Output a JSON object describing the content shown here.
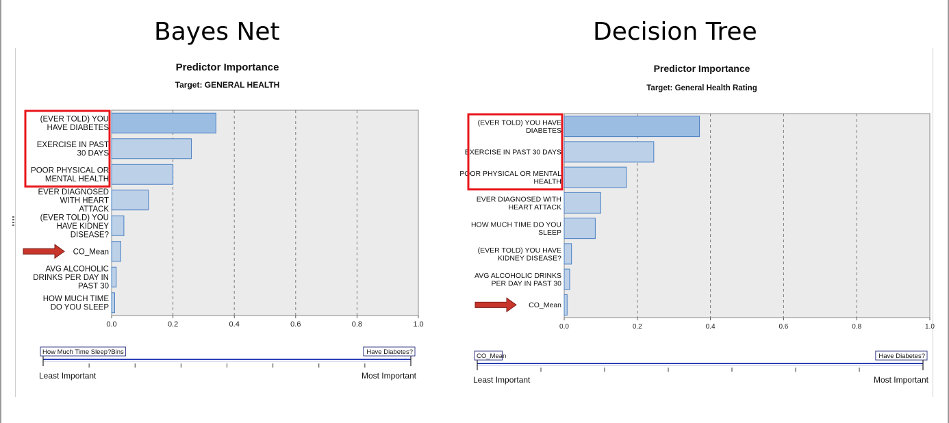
{
  "panels": {
    "left": {
      "title": "Bayes Net"
    },
    "right": {
      "title": "Decision Tree"
    }
  },
  "colors": {
    "plot_bg": "#ebebeb",
    "bar_fill_top": "#9cbde2",
    "bar_fill": "#bcd0e8",
    "bar_stroke": "#4a7fc1",
    "highlight_box": "#e8161b",
    "arrow": "#c8352b",
    "slider_line": "#2c3fb5"
  },
  "chart_data": [
    {
      "type": "bar",
      "orientation": "horizontal",
      "title": "Predictor Importance",
      "subtitle": "Target: GENERAL HEALTH",
      "categories": [
        [
          "(EVER TOLD) YOU",
          "HAVE DIABETES"
        ],
        [
          "EXERCISE IN PAST",
          "30 DAYS"
        ],
        [
          "POOR PHYSICAL OR",
          "MENTAL HEALTH"
        ],
        [
          "EVER DIAGNOSED",
          "WITH HEART",
          "ATTACK"
        ],
        [
          "(EVER TOLD) YOU",
          "HAVE KIDNEY",
          "DISEASE?"
        ],
        [
          "CO_Mean"
        ],
        [
          "AVG ALCOHOLIC",
          "DRINKS PER DAY IN",
          "PAST 30"
        ],
        [
          "HOW MUCH TIME",
          "DO YOU SLEEP"
        ]
      ],
      "values": [
        0.34,
        0.26,
        0.2,
        0.12,
        0.04,
        0.03,
        0.015,
        0.01
      ],
      "xlim": [
        0,
        1.0
      ],
      "xticks": [
        "0.0",
        "0.2",
        "0.4",
        "0.6",
        "0.8",
        "1.0"
      ],
      "grid": "vertical dashed",
      "highlighted_rows": [
        0,
        1,
        2
      ],
      "arrow_row": 5,
      "slider": {
        "left_label": "How Much Time Sleep?Bins",
        "right_label": "Have Diabetes?",
        "least_label": "Least Important",
        "most_label": "Most Important"
      }
    },
    {
      "type": "bar",
      "orientation": "horizontal",
      "title": "Predictor Importance",
      "subtitle": "Target: General Health Rating",
      "categories": [
        [
          "(EVER TOLD) YOU HAVE",
          "DIABETES"
        ],
        [
          "EXERCISE IN PAST 30 DAYS"
        ],
        [
          "POOR PHYSICAL OR MENTAL",
          "HEALTH"
        ],
        [
          "EVER DIAGNOSED WITH",
          "HEART ATTACK"
        ],
        [
          "HOW MUCH TIME DO YOU",
          "SLEEP"
        ],
        [
          "(EVER TOLD) YOU HAVE",
          "KIDNEY DISEASE?"
        ],
        [
          "AVG ALCOHOLIC DRINKS",
          "PER DAY IN PAST 30"
        ],
        [
          "CO_Mean"
        ]
      ],
      "values": [
        0.37,
        0.245,
        0.17,
        0.1,
        0.085,
        0.02,
        0.015,
        0.008
      ],
      "xlim": [
        0,
        1.0
      ],
      "xticks": [
        "0.0",
        "0.2",
        "0.4",
        "0.6",
        "0.8",
        "1.0"
      ],
      "grid": "vertical dashed",
      "highlighted_rows": [
        0,
        1,
        2
      ],
      "arrow_row": 7,
      "slider": {
        "left_label": "CO_Mean",
        "right_label": "Have Diabetes?",
        "least_label": "Least Important",
        "most_label": "Most Important"
      }
    }
  ]
}
